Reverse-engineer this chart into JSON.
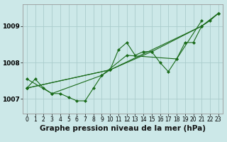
{
  "background_color": "#cce8e8",
  "grid_color": "#aacccc",
  "line_color": "#1a6b1a",
  "title": "Graphe pression niveau de la mer (hPa)",
  "title_fontsize": 7.5,
  "title_fontweight": "bold",
  "xlim": [
    -0.5,
    23.5
  ],
  "ylim": [
    1006.6,
    1009.6
  ],
  "yticks": [
    1007,
    1008,
    1009
  ],
  "xticks": [
    0,
    1,
    2,
    3,
    4,
    5,
    6,
    7,
    8,
    9,
    10,
    11,
    12,
    13,
    14,
    15,
    16,
    17,
    18,
    19,
    20,
    21,
    22,
    23
  ],
  "tick_fontsize": 5.5,
  "series": [
    [
      1007.3,
      1007.55,
      1007.3,
      1007.15,
      1007.15,
      1007.05,
      1006.95,
      1006.95,
      1007.3,
      1007.65,
      1007.8,
      1008.35,
      1008.55,
      1008.2,
      1008.3,
      1008.3,
      1008.0,
      1007.75,
      1008.1,
      1008.55,
      1008.55,
      1009.0,
      1009.15,
      1009.35
    ],
    [
      1007.3,
      null,
      null,
      null,
      null,
      null,
      null,
      null,
      null,
      null,
      1007.8,
      null,
      null,
      null,
      null,
      1008.3,
      null,
      null,
      null,
      null,
      null,
      1009.0,
      null,
      1009.35
    ],
    [
      1007.55,
      null,
      null,
      1007.15,
      null,
      null,
      null,
      null,
      null,
      1007.65,
      null,
      null,
      1008.2,
      null,
      null,
      null,
      null,
      null,
      1008.1,
      null,
      null,
      1009.15,
      null,
      null
    ],
    [
      1007.3,
      null,
      null,
      null,
      null,
      null,
      null,
      null,
      null,
      null,
      1007.8,
      null,
      null,
      null,
      null,
      null,
      null,
      null,
      null,
      null,
      null,
      1009.0,
      null,
      1009.35
    ]
  ],
  "marker": "D",
  "markersize": 2.0,
  "linewidth": 0.8
}
